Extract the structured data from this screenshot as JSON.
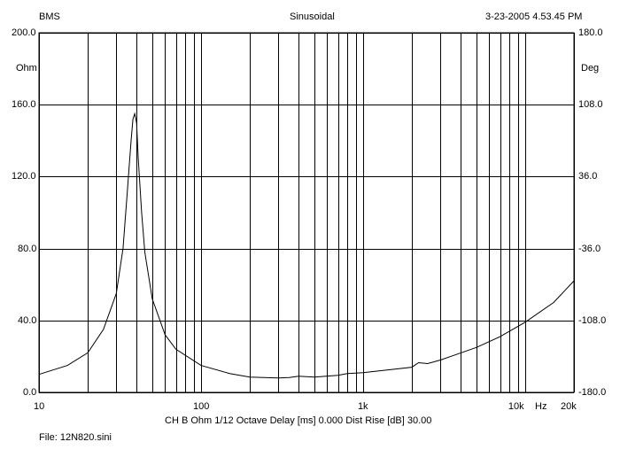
{
  "header": {
    "left": "BMS",
    "center": "Sinusoidal",
    "right": "3-23-2005 4.53.45 PM"
  },
  "footer": {
    "settings": "CH B   Ohm   1/12 Octave   Delay [ms] 0.000   Dist Rise [dB] 30.00",
    "file": "File: 12N820.sini"
  },
  "chart_data": {
    "type": "line",
    "title": "",
    "xlabel": "Hz",
    "ylabel": "Ohm",
    "y2label": "Deg",
    "x_scale": "log",
    "xlim": [
      10,
      20000
    ],
    "ylim": [
      0,
      200
    ],
    "y2lim": [
      -180,
      180
    ],
    "grid": true,
    "x_ticks": [
      "10",
      "100",
      "1k",
      "10k",
      "20k"
    ],
    "y_ticks": [
      "0.0",
      "40.0",
      "80.0",
      "120.0",
      "160.0",
      "200.0"
    ],
    "y2_ticks": [
      "-180.0",
      "-108.0",
      "-36.0",
      "36.0",
      "108.0",
      "180.0"
    ],
    "series": [
      {
        "x": [
          10,
          15,
          20,
          25,
          30,
          33,
          35,
          37,
          38,
          39,
          40,
          41,
          43,
          45,
          50,
          60,
          70,
          100,
          150,
          200,
          300,
          350,
          400,
          500,
          700,
          800,
          1000,
          2000,
          2200,
          2500,
          3000,
          5000,
          7000,
          10000,
          15000,
          20000
        ],
        "values": [
          10,
          15,
          22,
          35,
          55,
          80,
          110,
          140,
          152,
          155,
          150,
          130,
          100,
          78,
          52,
          32,
          24,
          15,
          10.5,
          8.5,
          8,
          8.3,
          9,
          8.5,
          9.5,
          10.5,
          11,
          14,
          16.5,
          16,
          18,
          25,
          31,
          39,
          50,
          62
        ]
      }
    ]
  }
}
